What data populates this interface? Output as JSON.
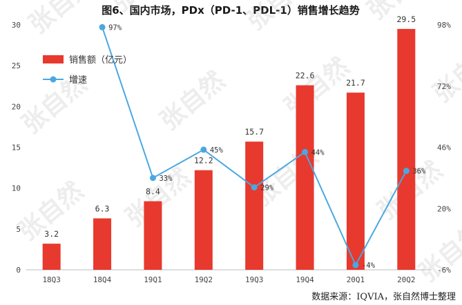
{
  "chart_data": {
    "type": "bar+line",
    "title": "图6、国内市场，PDx（PD-1、PDL-1）销售增长趋势",
    "categories": [
      "18Q3",
      "18Q4",
      "19Q1",
      "19Q2",
      "19Q3",
      "19Q4",
      "20Q1",
      "20Q2"
    ],
    "series": [
      {
        "name": "销售额（亿元）",
        "type": "bar",
        "axis": "left",
        "color": "#e8392e",
        "values": [
          3.2,
          6.3,
          8.4,
          12.2,
          15.7,
          22.6,
          21.7,
          29.5
        ],
        "labels": [
          "3.2",
          "6.3",
          "8.4",
          "12.2",
          "15.7",
          "22.6",
          "21.7",
          "29.5"
        ]
      },
      {
        "name": "增速",
        "type": "line",
        "axis": "right",
        "color": "#4aa8e0",
        "values": [
          null,
          97,
          33,
          45,
          29,
          44,
          -4,
          36
        ],
        "labels": [
          "",
          "97%",
          "33%",
          "45%",
          "29%",
          "44%",
          "-4%",
          "36%"
        ]
      }
    ],
    "y_left": {
      "min": 0,
      "max": 30,
      "ticks": [
        "0",
        "5",
        "10",
        "15",
        "20",
        "25",
        "30"
      ]
    },
    "y_right": {
      "min": -6,
      "max": 98,
      "ticks": [
        "-6%",
        "20%",
        "46%",
        "72%",
        "98%"
      ]
    },
    "legend_position": "top-left"
  },
  "source_note": "数据来源：IQVIA，张自然博士整理",
  "watermark_text": "张自然"
}
